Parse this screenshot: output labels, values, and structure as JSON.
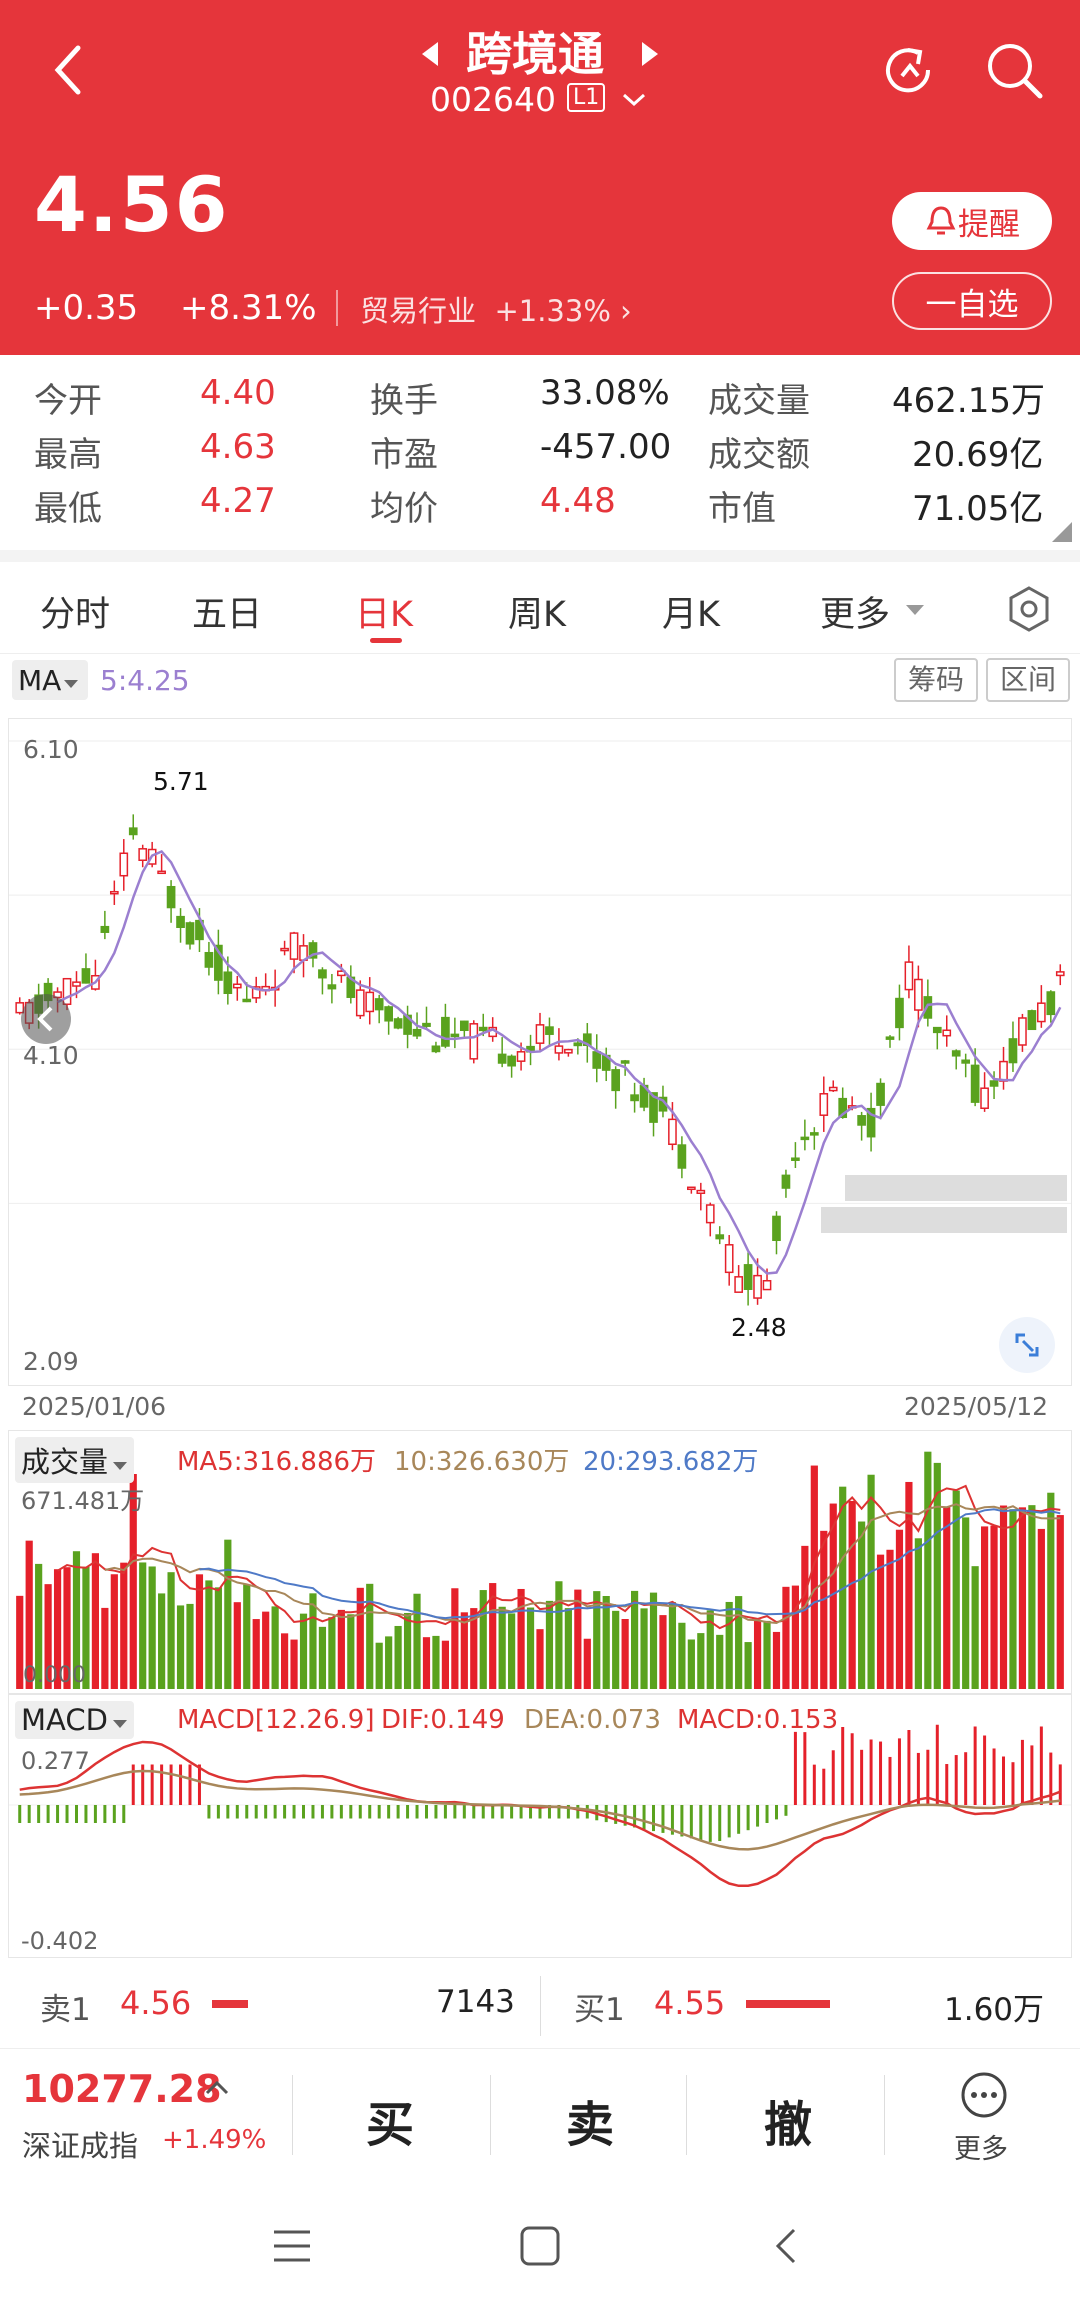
{
  "header": {
    "stock_name": "跨境通",
    "code": "002640",
    "level": "L1",
    "price": "4.56",
    "change": "+0.35",
    "change_pct": "+8.31%",
    "industry": "贸易行业",
    "industry_pct": "+1.33%",
    "alert_label": "提醒",
    "watch_label": "一自选",
    "brand_color": "#e5353b"
  },
  "stats": [
    {
      "label": "今开",
      "value": "4.40"
    },
    {
      "label": "换手",
      "value": "33.08%"
    },
    {
      "label": "成交量",
      "value": "462.15万"
    },
    {
      "label": "最高",
      "value": "4.63"
    },
    {
      "label": "市盈",
      "value": "-457.00"
    },
    {
      "label": "成交额",
      "value": "20.69亿"
    },
    {
      "label": "最低",
      "value": "4.27"
    },
    {
      "label": "均价",
      "value": "4.48"
    },
    {
      "label": "市值",
      "value": "71.05亿"
    }
  ],
  "tabs": [
    "分时",
    "五日",
    "日K",
    "周K",
    "月K",
    "更多"
  ],
  "active_tab": "日K",
  "kline": {
    "ma_label": "MA",
    "ma5": "5:4.25",
    "btn_chips": "筹码",
    "btn_range": "区间",
    "y_top": "6.10",
    "y_mid": "4.10",
    "y_bottom": "2.09",
    "high_label": "5.71",
    "low_label": "2.48",
    "date_start": "2025/01/06",
    "date_end": "2025/05/12",
    "chart_data": {
      "type": "candlestick",
      "ylim": [
        2.09,
        6.1
      ],
      "max": 5.71,
      "min": 2.48,
      "last_close": 4.56
    }
  },
  "volume": {
    "label": "成交量",
    "ma5": "MA5:316.886万",
    "ma10": "10:326.630万",
    "ma20": "20:293.682万",
    "y_top": "671.481万",
    "y_bottom": "0.000"
  },
  "macd": {
    "label": "MACD",
    "params": "MACD[12.26.9]",
    "dif": "DIF:0.149",
    "dea": "DEA:0.073",
    "macd": "MACD:0.153",
    "y_top": "0.277",
    "y_bottom": "-0.402"
  },
  "orderbook": {
    "sell_label": "卖1",
    "sell_price": "4.56",
    "sell_vol": "7143",
    "buy_label": "买1",
    "buy_price": "4.55",
    "buy_vol": "1.60万"
  },
  "bottom": {
    "index_value": "10277.28",
    "index_name": "深证成指",
    "index_pct": "+1.49%",
    "buy": "买",
    "sell": "卖",
    "cancel": "撤",
    "more": "更多"
  }
}
